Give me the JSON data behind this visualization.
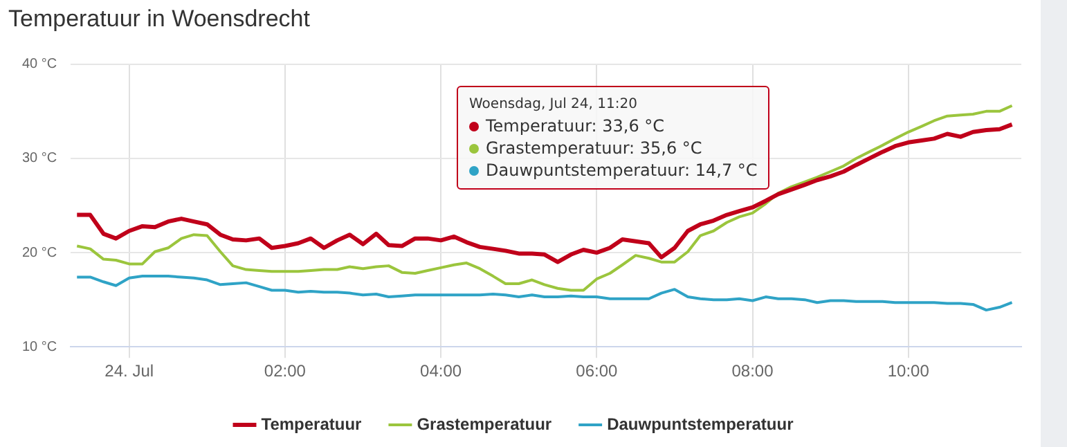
{
  "chart_data": {
    "type": "line",
    "title": "Temperatuur in Woensdrecht",
    "x": [
      -0.67,
      -0.5,
      -0.33,
      -0.17,
      0,
      0.17,
      0.33,
      0.5,
      0.67,
      0.83,
      1,
      1.17,
      1.33,
      1.5,
      1.67,
      1.83,
      2,
      2.17,
      2.33,
      2.5,
      2.67,
      2.83,
      3,
      3.17,
      3.33,
      3.5,
      3.67,
      3.83,
      4,
      4.17,
      4.33,
      4.5,
      4.67,
      4.83,
      5,
      5.17,
      5.33,
      5.5,
      5.67,
      5.83,
      6,
      6.17,
      6.33,
      6.5,
      6.67,
      6.83,
      7,
      7.17,
      7.33,
      7.5,
      7.67,
      7.83,
      8,
      8.17,
      8.33,
      8.5,
      8.67,
      8.83,
      9,
      9.17,
      9.33,
      9.5,
      9.67,
      9.83,
      10,
      10.17,
      10.33,
      10.5,
      10.67,
      10.83,
      11,
      11.17,
      11.33
    ],
    "series": [
      {
        "name": "Temperatuur",
        "color": "#c0001a",
        "values": [
          24.0,
          24.0,
          22.0,
          21.5,
          22.3,
          22.8,
          22.7,
          23.3,
          23.6,
          23.3,
          23.0,
          21.9,
          21.4,
          21.3,
          21.5,
          20.5,
          20.7,
          21.0,
          21.5,
          20.5,
          21.3,
          21.9,
          20.9,
          22.0,
          20.8,
          20.7,
          21.5,
          21.5,
          21.3,
          21.7,
          21.1,
          20.6,
          20.4,
          20.2,
          19.9,
          19.9,
          19.8,
          19.0,
          19.8,
          20.3,
          20.0,
          20.5,
          21.4,
          21.2,
          21.0,
          19.5,
          20.5,
          22.3,
          23.0,
          23.4,
          24.0,
          24.4,
          24.8,
          25.5,
          26.2,
          26.7,
          27.2,
          27.7,
          28.1,
          28.6,
          29.3,
          30.0,
          30.7,
          31.3,
          31.7,
          31.9,
          32.1,
          32.6,
          32.3,
          32.8,
          33.0,
          33.1,
          33.6
        ]
      },
      {
        "name": "Grastemperatuur",
        "color": "#9bc53d",
        "values": [
          20.7,
          20.4,
          19.3,
          19.2,
          18.8,
          18.8,
          20.1,
          20.5,
          21.5,
          21.9,
          21.8,
          20.1,
          18.6,
          18.2,
          18.1,
          18.0,
          18.0,
          18.0,
          18.1,
          18.2,
          18.2,
          18.5,
          18.3,
          18.5,
          18.6,
          17.9,
          17.8,
          18.1,
          18.4,
          18.7,
          18.9,
          18.3,
          17.5,
          16.7,
          16.7,
          17.1,
          16.6,
          16.2,
          16.0,
          16.0,
          17.2,
          17.8,
          18.7,
          19.7,
          19.4,
          19.0,
          19.0,
          20.1,
          21.8,
          22.3,
          23.2,
          23.8,
          24.2,
          25.2,
          26.3,
          27.0,
          27.5,
          28.0,
          28.6,
          29.2,
          30.0,
          30.7,
          31.4,
          32.1,
          32.8,
          33.4,
          34.0,
          34.5,
          34.6,
          34.7,
          35.0,
          35.0,
          35.6
        ]
      },
      {
        "name": "Dauwpuntstemperatuur",
        "color": "#2fa3c6",
        "values": [
          17.4,
          17.4,
          16.9,
          16.5,
          17.3,
          17.5,
          17.5,
          17.5,
          17.4,
          17.3,
          17.1,
          16.6,
          16.7,
          16.8,
          16.4,
          16.0,
          16.0,
          15.8,
          15.9,
          15.8,
          15.8,
          15.7,
          15.5,
          15.6,
          15.3,
          15.4,
          15.5,
          15.5,
          15.5,
          15.5,
          15.5,
          15.5,
          15.6,
          15.5,
          15.3,
          15.5,
          15.3,
          15.3,
          15.4,
          15.3,
          15.3,
          15.1,
          15.1,
          15.1,
          15.1,
          15.7,
          16.1,
          15.3,
          15.1,
          15.0,
          15.0,
          15.1,
          14.9,
          15.3,
          15.1,
          15.1,
          15.0,
          14.7,
          14.9,
          14.9,
          14.8,
          14.8,
          14.8,
          14.7,
          14.7,
          14.7,
          14.7,
          14.6,
          14.6,
          14.5,
          13.9,
          14.2,
          14.7
        ]
      }
    ],
    "xlim": [
      -0.75,
      11.45
    ],
    "xticks": [
      {
        "value": 0,
        "label": "24. Jul"
      },
      {
        "value": 2,
        "label": "02:00"
      },
      {
        "value": 4,
        "label": "04:00"
      },
      {
        "value": 6,
        "label": "06:00"
      },
      {
        "value": 8,
        "label": "08:00"
      },
      {
        "value": 10,
        "label": "10:00"
      }
    ],
    "ylim": [
      10,
      40
    ],
    "yticks": [
      {
        "value": 10,
        "label": "10 °C"
      },
      {
        "value": 20,
        "label": "20 °C"
      },
      {
        "value": 30,
        "label": "30 °C"
      },
      {
        "value": 40,
        "label": "40 °C"
      }
    ],
    "grid": true,
    "legend": "bottom",
    "marker": "none",
    "line_style": "solid",
    "annotations": [
      "Woensdag, Jul 24, 11:20",
      "Temperatuur: 33,6 °C",
      "Grastemperatuur: 35,6 °C",
      "Dauwpuntstemperatuur: 14,7 °C"
    ]
  }
}
